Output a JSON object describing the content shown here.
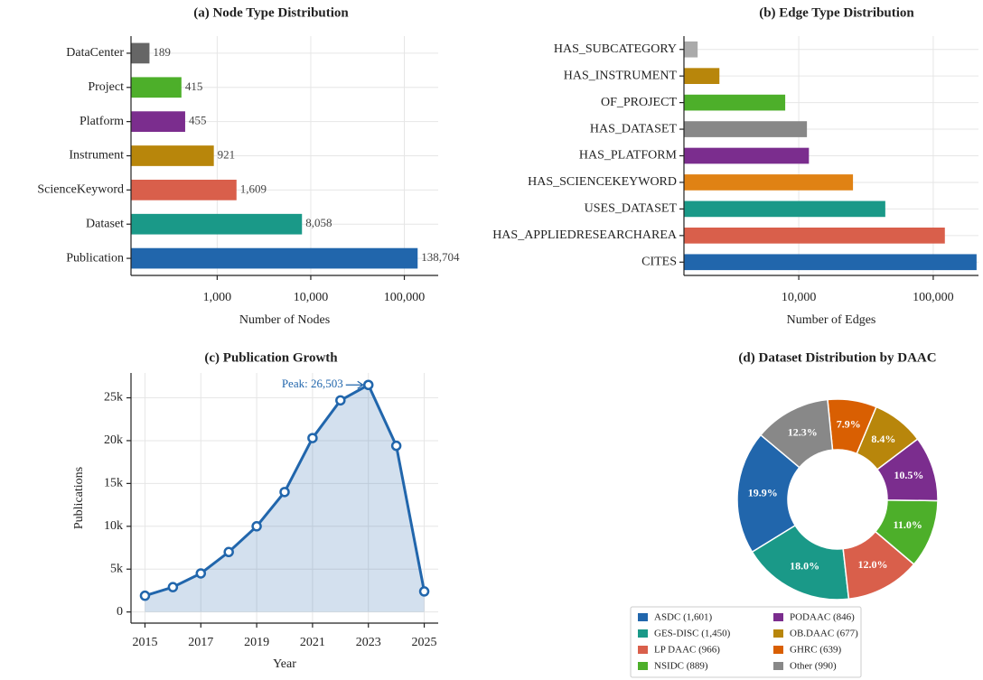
{
  "chart_data": [
    {
      "type": "hbar",
      "title": "(a) Node Type Distribution",
      "xlabel": "Number of Nodes",
      "categories": [
        "DataCenter",
        "Project",
        "Platform",
        "Instrument",
        "ScienceKeyword",
        "Dataset",
        "Publication"
      ],
      "values": [
        189,
        415,
        455,
        921,
        1609,
        8058,
        138704
      ],
      "value_labels": [
        "189",
        "415",
        "455",
        "921",
        "1,609",
        "8,058",
        "138,704"
      ],
      "colors": [
        "#666666",
        "#4daf2a",
        "#7b2d8e",
        "#b8860b",
        "#d95f4b",
        "#1a9988",
        "#2166ac"
      ],
      "log_x": true,
      "xlim": [
        120,
        230000
      ],
      "xticks": [
        {
          "value": 1000,
          "label": "1,000"
        },
        {
          "value": 10000,
          "label": "10,000"
        },
        {
          "value": 100000,
          "label": "100,000"
        }
      ],
      "grid": true
    },
    {
      "type": "hbar",
      "title": "(b) Edge Type Distribution",
      "xlabel": "Number of Edges",
      "categories": [
        "HAS_SUBCATEGORY",
        "HAS_INSTRUMENT",
        "OF_PROJECT",
        "HAS_DATASET",
        "HAS_PLATFORM",
        "HAS_SCIENCEKEYWORD",
        "USES_DATASET",
        "HAS_APPLIEDRESEARCHAREA",
        "CITES"
      ],
      "values": [
        1770,
        2570,
        7930,
        11500,
        11900,
        25300,
        44000,
        122000,
        210000
      ],
      "colors": [
        "#aaaaaa",
        "#b8860b",
        "#4daf2a",
        "#888888",
        "#7b2d8e",
        "#e08214",
        "#1a9988",
        "#d95f4b",
        "#2166ac"
      ],
      "log_x": true,
      "xlim": [
        1400,
        217000
      ],
      "xticks": [
        {
          "value": 10000,
          "label": "10,000"
        },
        {
          "value": 100000,
          "label": "100,000"
        }
      ],
      "grid": true
    },
    {
      "type": "line",
      "title": "(c) Publication Growth",
      "xlabel": "Year",
      "ylabel": "Publications",
      "x": [
        2015,
        2016,
        2017,
        2018,
        2019,
        2020,
        2021,
        2022,
        2023,
        2024,
        2025
      ],
      "values": [
        1900,
        2900,
        4500,
        7000,
        10000,
        14000,
        20300,
        24700,
        26503,
        19400,
        2400
      ],
      "color": "#2166ac",
      "annotation": "Peak: 26,503",
      "xlim": [
        2014.5,
        2025.5
      ],
      "xticks": [
        2015,
        2017,
        2019,
        2021,
        2023,
        2025
      ],
      "ylim": [
        -1300,
        27900
      ],
      "yticks": [
        0,
        {
          "value": 5000,
          "label": "5k"
        },
        {
          "value": 10000,
          "label": "10k"
        },
        {
          "value": 15000,
          "label": "15k"
        },
        {
          "value": 20000,
          "label": "20k"
        },
        {
          "value": 25000,
          "label": "25k"
        }
      ],
      "grid": true
    },
    {
      "type": "pie",
      "title": "(d) Dataset Distribution by DAAC",
      "categories": [
        "ASDC (1,601)",
        "GES-DISC (1,450)",
        "LP DAAC (966)",
        "NSIDC (889)",
        "PODAAC (846)",
        "OB.DAAC (677)",
        "GHRC (639)",
        "Other (990)"
      ],
      "values": [
        19.9,
        18.0,
        12.0,
        11.0,
        10.5,
        8.4,
        7.9,
        12.3
      ],
      "value_labels": [
        "19.9%",
        "18.0%",
        "12.0%",
        "11.0%",
        "10.5%",
        "8.4%",
        "7.9%",
        "12.3%"
      ],
      "colors": [
        "#2166ac",
        "#1a9988",
        "#d95f4b",
        "#4daf2a",
        "#7b2d8e",
        "#b8860b",
        "#d95f02",
        "#888888"
      ]
    }
  ]
}
